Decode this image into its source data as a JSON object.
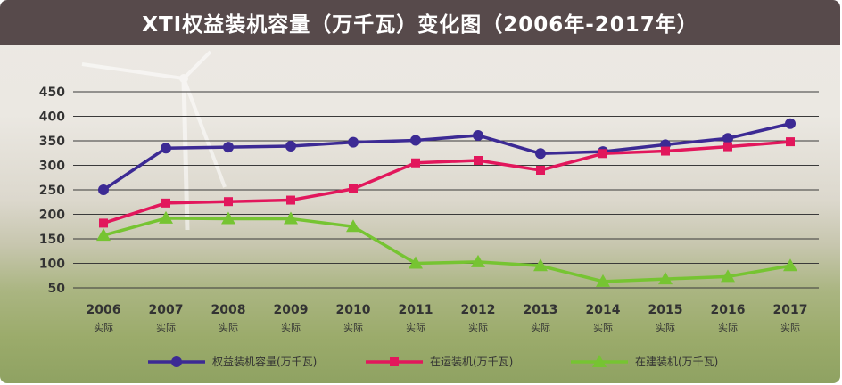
{
  "chart_data": {
    "type": "line",
    "title": "XTI权益装机容量（万千瓦）变化图（2006年-2017年）",
    "x": [
      "2006",
      "2007",
      "2008",
      "2009",
      "2010",
      "2011",
      "2012",
      "2013",
      "2014",
      "2015",
      "2016",
      "2017"
    ],
    "x_sublabel": "实际",
    "ylim": [
      50,
      450
    ],
    "yticks": [
      50,
      100,
      150,
      200,
      250,
      300,
      350,
      400,
      450
    ],
    "grid": true,
    "legend_position": "bottom",
    "series": [
      {
        "name": "权益装机容量(万千瓦)",
        "color": "#3c2a94",
        "marker": "circle",
        "values": [
          250,
          335,
          337,
          339,
          347,
          351,
          361,
          324,
          328,
          342,
          355,
          385
        ]
      },
      {
        "name": "在运装机(万千瓦)",
        "color": "#e2175c",
        "marker": "square",
        "values": [
          182,
          223,
          226,
          229,
          252,
          305,
          310,
          290,
          324,
          329,
          338,
          348
        ]
      },
      {
        "name": "在建装机(万千瓦)",
        "color": "#76c432",
        "marker": "triangle",
        "values": [
          157,
          192,
          191,
          191,
          175,
          100,
          103,
          95,
          63,
          68,
          73,
          95
        ]
      }
    ]
  }
}
